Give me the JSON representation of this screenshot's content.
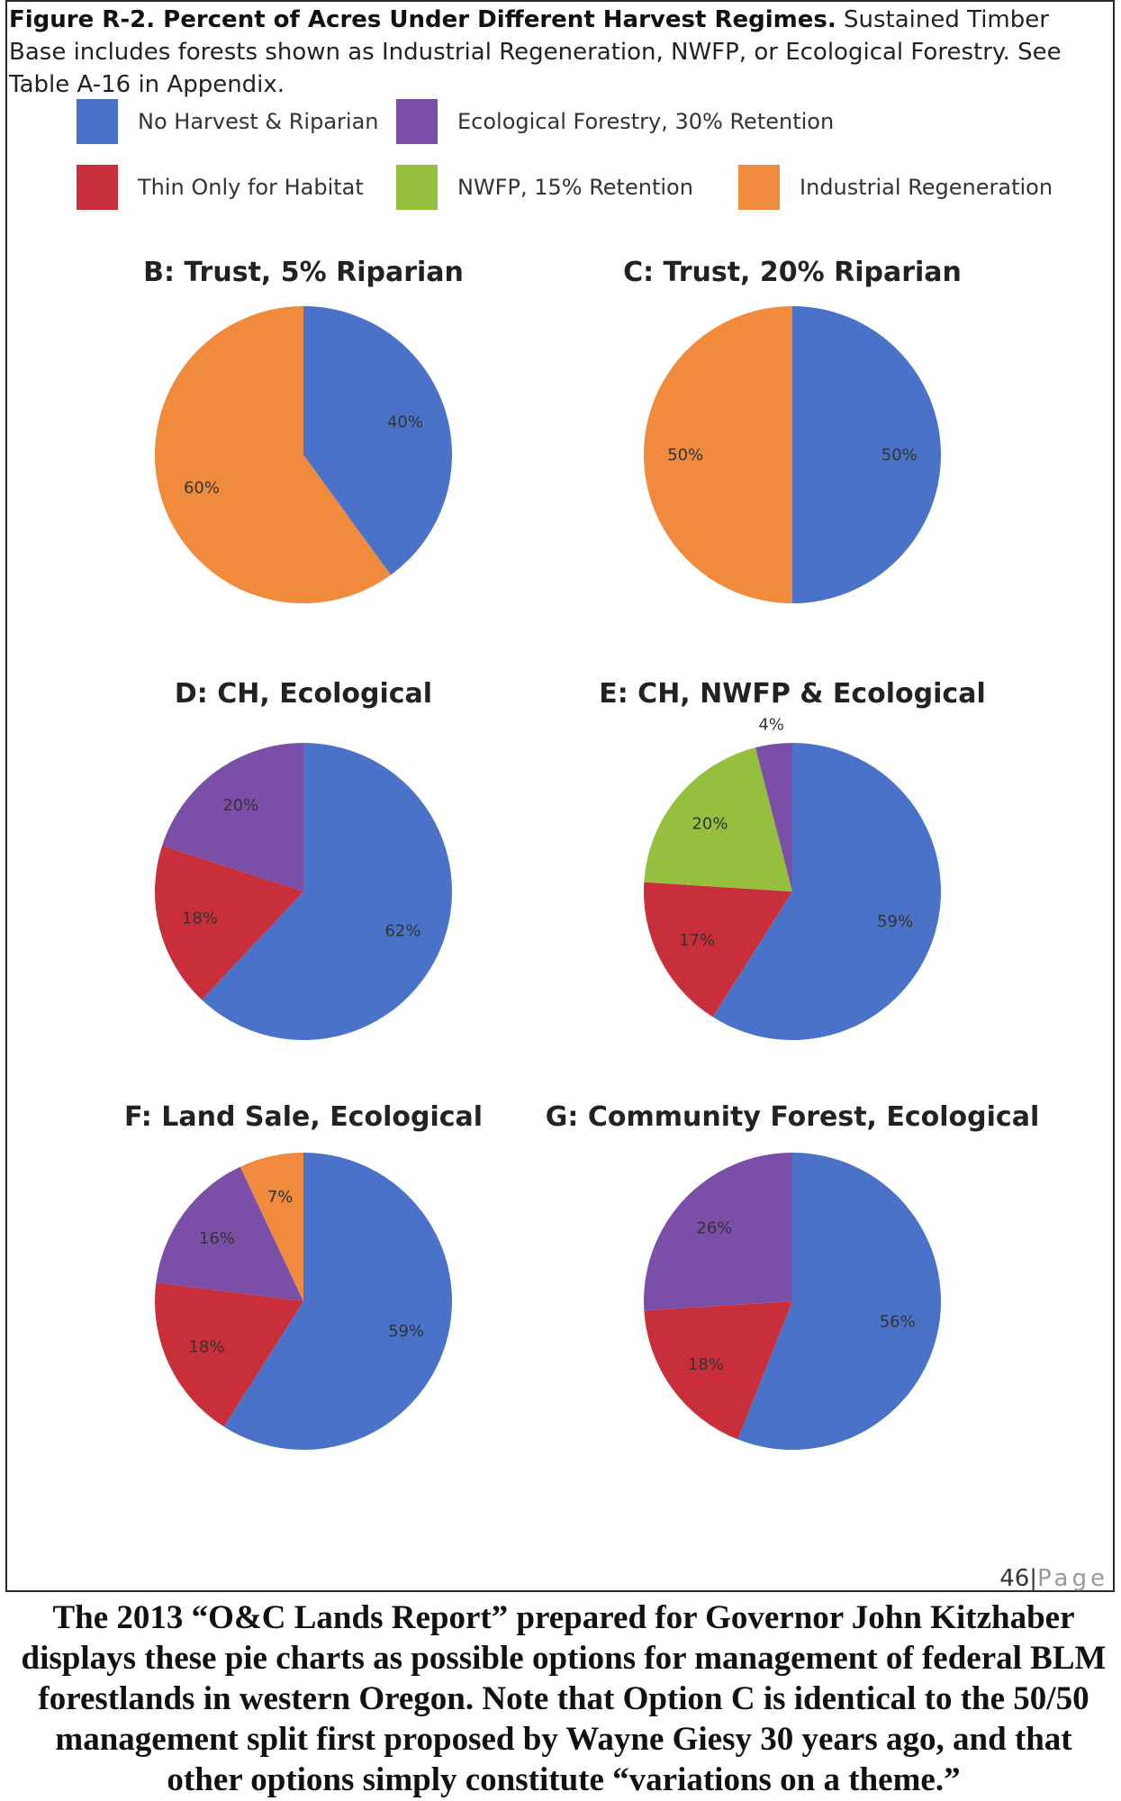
{
  "figure": {
    "caption_bold": "Figure R-2. Percent of Acres Under Different Harvest Regimes.",
    "caption_rest": " Sustained Timber Base includes forests shown as Industrial Regeneration, NWFP, or Ecological Forestry. See Table A-16 in Appendix."
  },
  "legend": [
    {
      "label": "No Harvest & Riparian",
      "color": "#4A72C9"
    },
    {
      "label": "Ecological Forestry, 30% Retention",
      "color": "#7B4FA8"
    },
    {
      "label": "Thin Only for Habitat",
      "color": "#C92F3A"
    },
    {
      "label": "NWFP, 15% Retention",
      "color": "#96BF3E"
    },
    {
      "label": "Industrial Regeneration",
      "color": "#F08A3C"
    }
  ],
  "chart_data": [
    {
      "type": "pie",
      "title": "B: Trust, 5% Riparian",
      "slices": [
        {
          "category": "No Harvest & Riparian",
          "value": 40,
          "label": "40%"
        },
        {
          "category": "Industrial Regeneration",
          "value": 60,
          "label": "60%"
        }
      ]
    },
    {
      "type": "pie",
      "title": "C: Trust, 20% Riparian",
      "slices": [
        {
          "category": "No Harvest & Riparian",
          "value": 50,
          "label": "50%"
        },
        {
          "category": "Industrial Regeneration",
          "value": 50,
          "label": "50%"
        }
      ]
    },
    {
      "type": "pie",
      "title": "D: CH, Ecological",
      "slices": [
        {
          "category": "No Harvest & Riparian",
          "value": 62,
          "label": "62%"
        },
        {
          "category": "Thin Only for Habitat",
          "value": 18,
          "label": "18%"
        },
        {
          "category": "Ecological Forestry, 30% Retention",
          "value": 20,
          "label": "20%"
        }
      ]
    },
    {
      "type": "pie",
      "title": "E: CH, NWFP & Ecological",
      "slices": [
        {
          "category": "No Harvest & Riparian",
          "value": 59,
          "label": "59%"
        },
        {
          "category": "Thin Only for Habitat",
          "value": 17,
          "label": "17%"
        },
        {
          "category": "NWFP, 15% Retention",
          "value": 20,
          "label": "20%"
        },
        {
          "category": "Ecological Forestry, 30% Retention",
          "value": 4,
          "label": "4%"
        }
      ]
    },
    {
      "type": "pie",
      "title": "F: Land Sale, Ecological",
      "slices": [
        {
          "category": "No Harvest & Riparian",
          "value": 59,
          "label": "59%"
        },
        {
          "category": "Thin Only for Habitat",
          "value": 18,
          "label": "18%"
        },
        {
          "category": "Ecological Forestry, 30% Retention",
          "value": 16,
          "label": "16%"
        },
        {
          "category": "Industrial Regeneration",
          "value": 7,
          "label": "7%"
        }
      ]
    },
    {
      "type": "pie",
      "title": "G: Community Forest, Ecological",
      "slices": [
        {
          "category": "No Harvest & Riparian",
          "value": 56,
          "label": "56%"
        },
        {
          "category": "Thin Only for Habitat",
          "value": 18,
          "label": "18%"
        },
        {
          "category": "Ecological Forestry, 30% Retention",
          "value": 26,
          "label": "26%"
        }
      ]
    }
  ],
  "page_footer": {
    "number": "46",
    "separator": "|",
    "word": "Page"
  },
  "bottom_text": "The 2013 “O&C Lands Report” prepared for Governor John Kitzhaber displays these pie charts as possible options for management of federal BLM forestlands in western Oregon. Note that Option C is identical to the 50/50 management split first proposed by Wayne Giesy 30 years ago, and that other options simply constitute “variations on a theme.”"
}
